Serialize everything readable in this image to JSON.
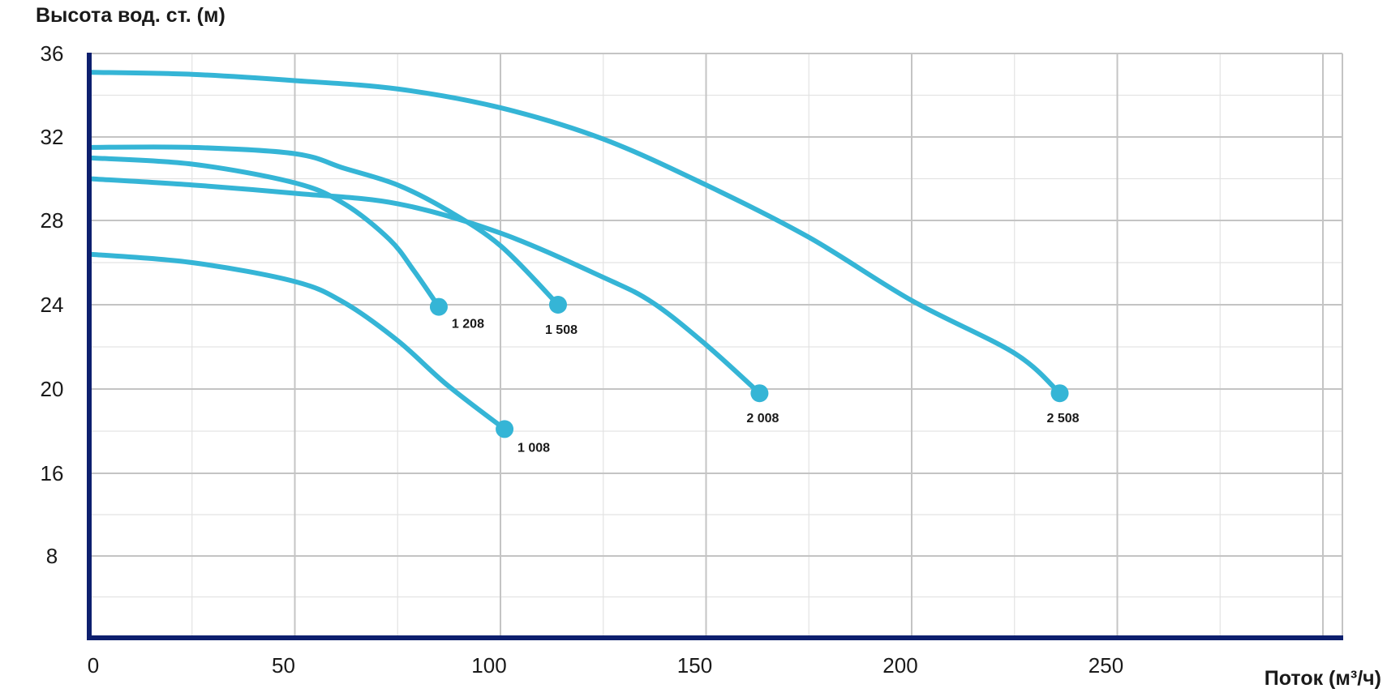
{
  "chart_data": {
    "type": "line",
    "ylabel": "Высота вод. ст. (м)",
    "xlabel": "Поток (м³/ч)",
    "xlim": [
      0,
      305
    ],
    "ylim": [
      0,
      36
    ],
    "x_ticks": [
      0,
      50,
      100,
      150,
      200,
      250
    ],
    "y_ticks": [
      8,
      16,
      20,
      24,
      28,
      32,
      36
    ],
    "grid": true,
    "colors": {
      "series": "#35b5d6",
      "axis": "#0d1f6e",
      "grid_major": "#c4c4c4",
      "grid_minor": "#e3e3e3"
    },
    "series": [
      {
        "name": "1 008",
        "x": [
          0,
          25,
          50,
          62,
          75,
          87,
          101
        ],
        "y": [
          26.4,
          26.0,
          25.1,
          24.1,
          22.3,
          20.2,
          18.1
        ]
      },
      {
        "name": "1 208",
        "x": [
          0,
          25,
          50,
          62,
          73,
          79,
          85
        ],
        "y": [
          31.0,
          30.7,
          29.8,
          28.8,
          27.1,
          25.6,
          23.9
        ]
      },
      {
        "name": "1 508",
        "x": [
          0,
          25,
          50,
          62,
          75,
          87,
          100,
          114
        ],
        "y": [
          31.5,
          31.5,
          31.2,
          30.5,
          29.7,
          28.5,
          26.8,
          24.0
        ]
      },
      {
        "name": "2 008",
        "x": [
          0,
          25,
          50,
          75,
          100,
          125,
          137,
          150,
          163
        ],
        "y": [
          30.0,
          29.7,
          29.3,
          28.8,
          27.4,
          25.3,
          24.1,
          22.1,
          19.8
        ]
      },
      {
        "name": "2 508",
        "x": [
          0,
          25,
          50,
          75,
          100,
          125,
          150,
          175,
          200,
          225,
          236
        ],
        "y": [
          35.1,
          35.0,
          34.7,
          34.3,
          33.4,
          31.9,
          29.7,
          27.2,
          24.2,
          21.7,
          19.8
        ]
      }
    ]
  }
}
